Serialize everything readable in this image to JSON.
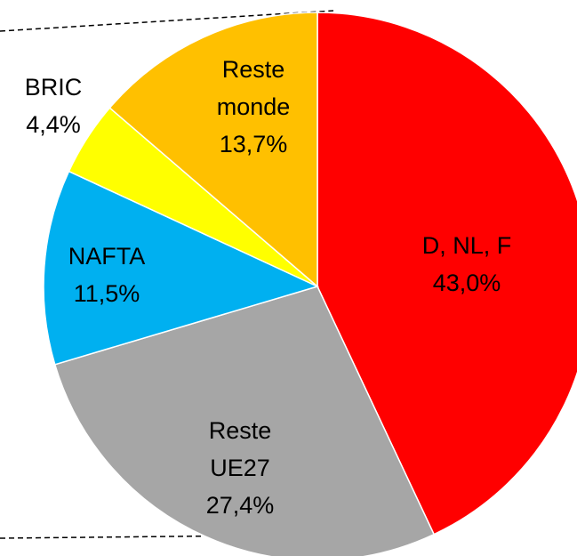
{
  "chart_data": {
    "type": "pie",
    "categories": [
      "D, NL, F",
      "Reste\nUE27",
      "NAFTA",
      "BRIC",
      "Reste\nmonde"
    ],
    "values": [
      43.0,
      27.4,
      11.5,
      4.4,
      13.7
    ],
    "value_labels": [
      "43,0%",
      "27,4%",
      "11,5%",
      "4,4%",
      "13,7%"
    ],
    "colors": [
      "#ff0000",
      "#a6a6a6",
      "#00b0f0",
      "#ffff00",
      "#ffc000"
    ]
  }
}
